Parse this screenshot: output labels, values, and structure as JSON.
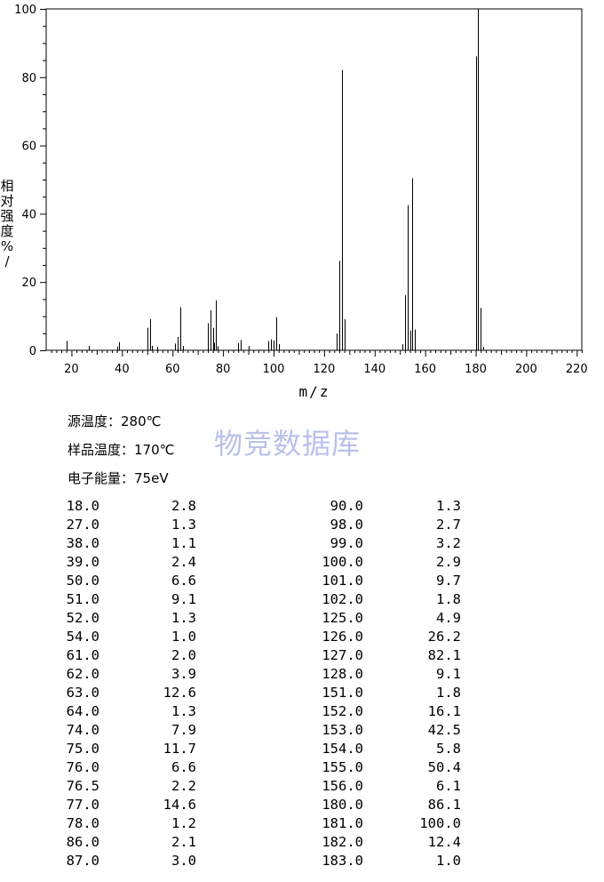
{
  "chart_data": {
    "type": "bar",
    "xlabel": "m/z",
    "ylabel": "相对强度%/",
    "xlim": [
      10,
      222
    ],
    "ylim": [
      0,
      100
    ],
    "x_ticks": [
      20,
      40,
      60,
      80,
      100,
      120,
      140,
      160,
      180,
      200,
      220
    ],
    "y_ticks": [
      0,
      20,
      40,
      60,
      80,
      100
    ],
    "grid": false,
    "mz": [
      18,
      27,
      38,
      39,
      50,
      51,
      52,
      54,
      61,
      62,
      63,
      64,
      74,
      75,
      76,
      76.5,
      77,
      78,
      86,
      87,
      90,
      98,
      99,
      100,
      101,
      102,
      125,
      126,
      127,
      128,
      151,
      152,
      153,
      154,
      155,
      156,
      180,
      181,
      182,
      183
    ],
    "intensity": [
      2.8,
      1.3,
      1.1,
      2.4,
      6.6,
      9.1,
      1.3,
      1.0,
      2.0,
      3.9,
      12.6,
      1.3,
      7.9,
      11.7,
      6.6,
      2.2,
      14.6,
      1.2,
      2.1,
      3.0,
      1.3,
      2.7,
      3.2,
      2.9,
      9.7,
      1.8,
      4.9,
      26.2,
      82.1,
      9.1,
      1.8,
      16.1,
      42.5,
      5.8,
      50.4,
      6.1,
      86.1,
      100.0,
      12.4,
      1.0
    ]
  },
  "conditions": {
    "source_temp": "源温度：280℃",
    "sample_temp": "样品温度：170℃",
    "electron_energy": "电子能量：75eV"
  },
  "watermark": "物竞数据库",
  "table": {
    "left": [
      [
        "18.0",
        "2.8"
      ],
      [
        "27.0",
        "1.3"
      ],
      [
        "38.0",
        "1.1"
      ],
      [
        "39.0",
        "2.4"
      ],
      [
        "50.0",
        "6.6"
      ],
      [
        "51.0",
        "9.1"
      ],
      [
        "52.0",
        "1.3"
      ],
      [
        "54.0",
        "1.0"
      ],
      [
        "61.0",
        "2.0"
      ],
      [
        "62.0",
        "3.9"
      ],
      [
        "63.0",
        "12.6"
      ],
      [
        "64.0",
        "1.3"
      ],
      [
        "74.0",
        "7.9"
      ],
      [
        "75.0",
        "11.7"
      ],
      [
        "76.0",
        "6.6"
      ],
      [
        "76.5",
        "2.2"
      ],
      [
        "77.0",
        "14.6"
      ],
      [
        "78.0",
        "1.2"
      ],
      [
        "86.0",
        "2.1"
      ],
      [
        "87.0",
        "3.0"
      ]
    ],
    "right": [
      [
        "90.0",
        "1.3"
      ],
      [
        "98.0",
        "2.7"
      ],
      [
        "99.0",
        "3.2"
      ],
      [
        "100.0",
        "2.9"
      ],
      [
        "101.0",
        "9.7"
      ],
      [
        "102.0",
        "1.8"
      ],
      [
        "125.0",
        "4.9"
      ],
      [
        "126.0",
        "26.2"
      ],
      [
        "127.0",
        "82.1"
      ],
      [
        "128.0",
        "9.1"
      ],
      [
        "151.0",
        "1.8"
      ],
      [
        "152.0",
        "16.1"
      ],
      [
        "153.0",
        "42.5"
      ],
      [
        "154.0",
        "5.8"
      ],
      [
        "155.0",
        "50.4"
      ],
      [
        "156.0",
        "6.1"
      ],
      [
        "180.0",
        "86.1"
      ],
      [
        "181.0",
        "100.0"
      ],
      [
        "182.0",
        "12.4"
      ],
      [
        "183.0",
        "1.0"
      ]
    ]
  }
}
